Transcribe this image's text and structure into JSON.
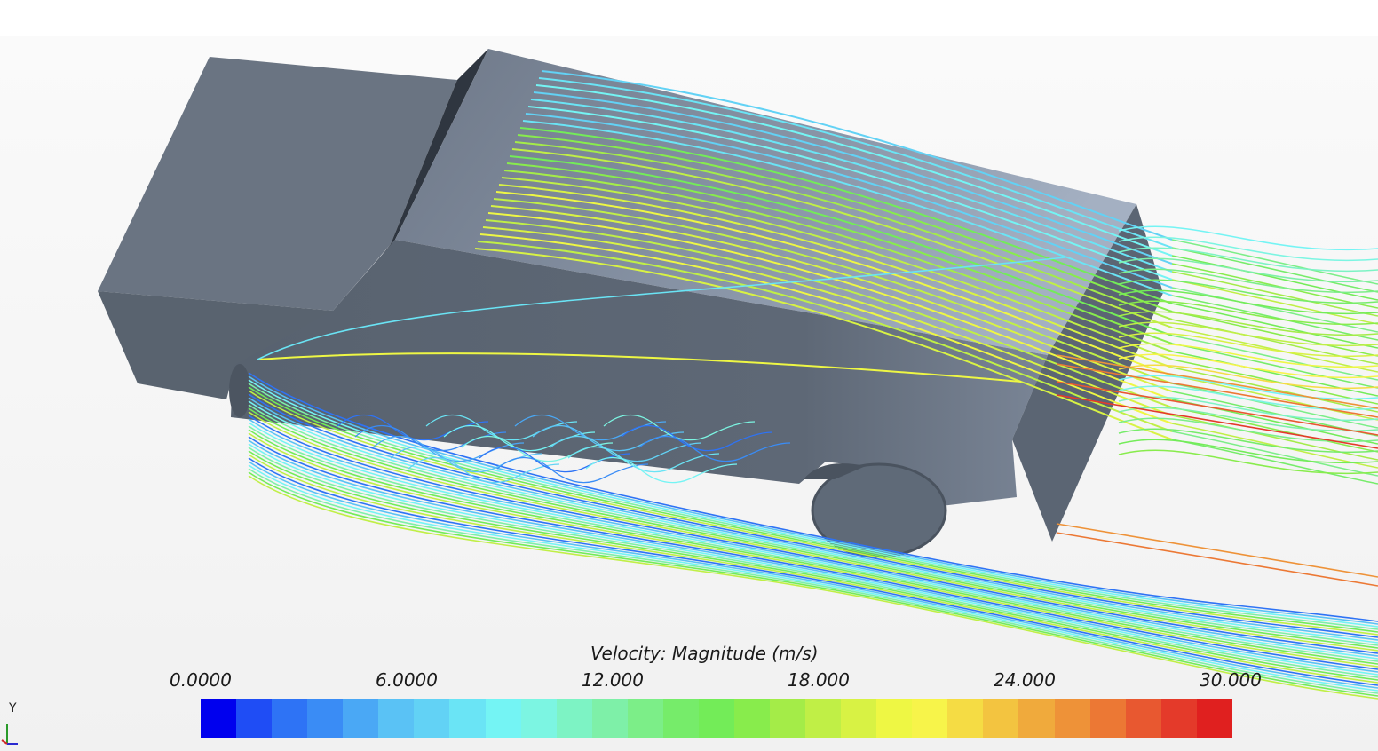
{
  "legend": {
    "title": "Velocity: Magnitude (m/s)",
    "ticks": [
      "0.0000",
      "6.0000",
      "12.000",
      "18.000",
      "24.000",
      "30.000"
    ],
    "min": 0,
    "max": 30,
    "colors": [
      "#0000ee",
      "#1f4df5",
      "#2e73f5",
      "#3a8cf5",
      "#4aa8f5",
      "#5ac2f5",
      "#62d2f5",
      "#6ae4f5",
      "#74f4f4",
      "#7cf5e2",
      "#7df3c4",
      "#7ef0a8",
      "#7cee88",
      "#76ec6a",
      "#73ec58",
      "#88ec4c",
      "#a4ec48",
      "#c0ef46",
      "#d8f244",
      "#eef744",
      "#f7f44a",
      "#f5dc44",
      "#f3c440",
      "#f0aa3c",
      "#ee9238",
      "#ec7834",
      "#e85830",
      "#e43a2a",
      "#e0201f"
    ]
  },
  "axis_triad": {
    "label": "Y",
    "icon": "axis-triad-icon"
  },
  "colors": {
    "body": "#5a6472",
    "background": "#f3f3f3"
  }
}
